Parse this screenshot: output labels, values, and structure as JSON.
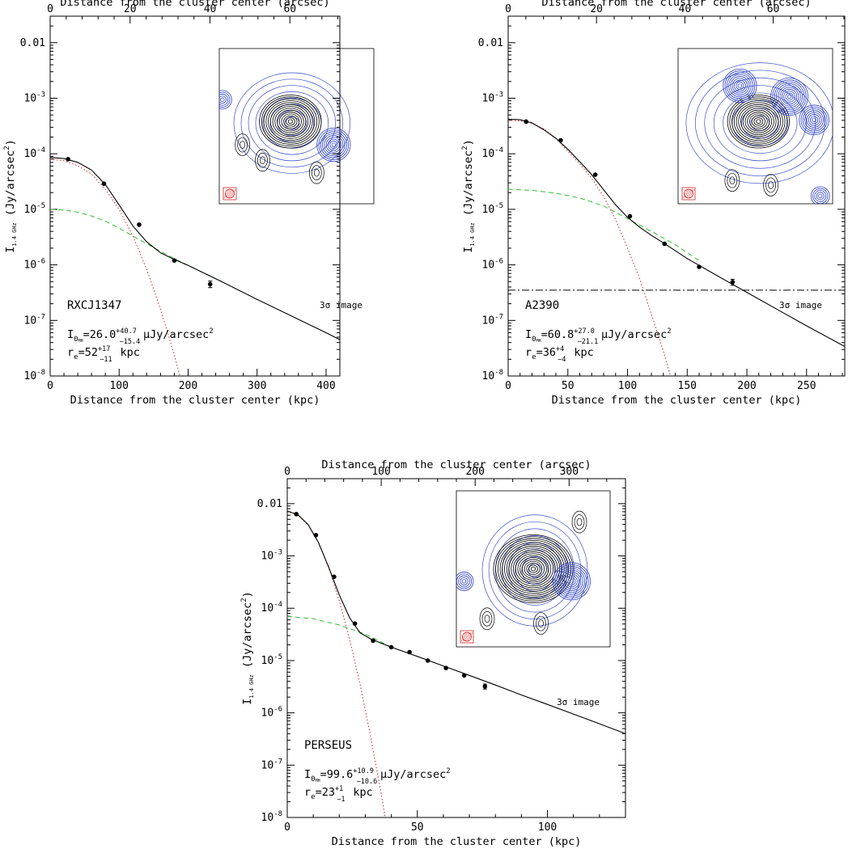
{
  "chart_data": [
    {
      "type": "line",
      "x_scale": "linear",
      "y_scale": "log",
      "xlabel": "Distance from the cluster center (kpc)",
      "ylabel": "I",
      "ylabel_sub": "1.4 GHz",
      "ylabel_unit": "(Jy/arcsec",
      "ylabel_unit_sup": "2",
      "ylabel_unit_end": ")",
      "top_xlabel": "Distance from the cluster center (arcsec)",
      "xlim": [
        0,
        420
      ],
      "ylim": [
        1e-08,
        0.03
      ],
      "top_xlim": [
        0,
        72.5
      ],
      "x_ticks": [
        0,
        100,
        200,
        300,
        400
      ],
      "x_ticklabels": [
        "0",
        "100",
        "200",
        "300",
        "400"
      ],
      "top_ticks": [
        0,
        20,
        40,
        60
      ],
      "top_ticklabels": [
        "0",
        "20",
        "40",
        "60"
      ],
      "y_ticks": [
        1e-08,
        1e-07,
        1e-06,
        1e-05,
        0.0001,
        0.001,
        0.01
      ],
      "y_ticklabels": [
        [
          "10",
          "-8"
        ],
        [
          "10",
          "-7"
        ],
        [
          "10",
          "-6"
        ],
        [
          "10",
          "-5"
        ],
        [
          "10",
          "-4"
        ],
        [
          "10",
          "-3"
        ],
        [
          "0.01",
          ""
        ]
      ],
      "cluster_name": "RXCJ1347",
      "sigma_label": "3σ image",
      "sigma_line": null,
      "annotation_line1": {
        "sym": "I",
        "sub": "0",
        "sub2": "MH",
        "eq": "=26.0",
        "sup": "+40.7",
        "lo": "−15.4",
        "unit": " μJy/arcsec",
        "unitsup": "2"
      },
      "annotation_line2": {
        "sym": "r",
        "sub": "e",
        "eq": "=52",
        "sup": "+17",
        "lo": "−11",
        "unit": " kpc"
      },
      "data_points": {
        "x": [
          26,
          78,
          129,
          180,
          232
        ],
        "y": [
          8e-05,
          2.9e-05,
          5.3e-06,
          1.2e-06,
          4.5e-07
        ],
        "yerr": [
          0,
          0,
          0,
          0,
          6e-08
        ]
      },
      "models": {
        "total": {
          "color": "#000000",
          "x": [
            0,
            20,
            40,
            60,
            80,
            100,
            120,
            140,
            160,
            180,
            200,
            250,
            300,
            350,
            400,
            420
          ],
          "y": [
            8.6e-05,
            8.2e-05,
            7e-05,
            5.1e-05,
            2.8e-05,
            1.2e-05,
            5e-06,
            2.6e-06,
            1.65e-06,
            1.25e-06,
            9.8e-07,
            4.9e-07,
            2.4e-07,
            1.2e-07,
            6e-08,
            4.5e-08
          ]
        },
        "core": {
          "color": "#d62020",
          "x": [
            0,
            20,
            40,
            60,
            80,
            100,
            120,
            140,
            160,
            180,
            200,
            210
          ],
          "y": [
            8e-05,
            7.5e-05,
            6.1e-05,
            4.3e-05,
            2.3e-05,
            1e-05,
            3.3e-06,
            8.3e-07,
            1.6e-07,
            2.4e-08,
            2.8e-09,
            1e-09
          ]
        },
        "halo": {
          "color": "#2fbf2f",
          "x": [
            0,
            20,
            40,
            60,
            80,
            100,
            120,
            140,
            160,
            180,
            200,
            250
          ],
          "y": [
            1e-05,
            9.7e-06,
            8.9e-06,
            7.6e-06,
            6.1e-06,
            4.6e-06,
            3.3e-06,
            2.4e-06,
            1.75e-06,
            1.3e-06,
            9.8e-07,
            4.9e-07
          ]
        }
      }
    },
    {
      "type": "line",
      "x_scale": "linear",
      "y_scale": "log",
      "xlabel": "Distance from the cluster center (kpc)",
      "ylabel": "I",
      "ylabel_sub": "1.4 GHz",
      "ylabel_unit": "(Jy/arcsec",
      "ylabel_unit_sup": "2",
      "ylabel_unit_end": ")",
      "top_xlabel": "Distance from the cluster center (arcsec)",
      "xlim": [
        0,
        282
      ],
      "ylim": [
        1e-08,
        0.03
      ],
      "top_xlim": [
        0,
        76.2
      ],
      "x_ticks": [
        0,
        50,
        100,
        150,
        200,
        250
      ],
      "x_ticklabels": [
        "0",
        "50",
        "100",
        "150",
        "200",
        "250"
      ],
      "top_ticks": [
        0,
        20,
        40,
        60
      ],
      "top_ticklabels": [
        "0",
        "20",
        "40",
        "60"
      ],
      "y_ticks": [
        1e-08,
        1e-07,
        1e-06,
        1e-05,
        0.0001,
        0.001,
        0.01
      ],
      "y_ticklabels": [
        [
          "10",
          "-8"
        ],
        [
          "10",
          "-7"
        ],
        [
          "10",
          "-6"
        ],
        [
          "10",
          "-5"
        ],
        [
          "10",
          "-4"
        ],
        [
          "10",
          "-3"
        ],
        [
          "0.01",
          ""
        ]
      ],
      "cluster_name": "A2390",
      "sigma_label": "3σ image",
      "sigma_line": 3.5e-07,
      "annotation_line1": {
        "sym": "I",
        "sub": "0",
        "sub2": "MH",
        "eq": "=60.8",
        "sup": "+27.0",
        "lo": "−21.1",
        "unit": " μJy/arcsec",
        "unitsup": "2"
      },
      "annotation_line2": {
        "sym": "r",
        "sub": "e",
        "eq": "=36",
        "sup": "+4",
        "lo": "−4",
        "unit": " kpc"
      },
      "data_points": {
        "x": [
          15,
          44,
          73,
          102,
          131,
          160,
          188
        ],
        "y": [
          0.00038,
          0.000175,
          4.2e-05,
          7.5e-06,
          2.4e-06,
          9.2e-07,
          4.9e-07
        ],
        "yerr": [
          0,
          0,
          0,
          0,
          0,
          0,
          6e-08
        ]
      },
      "models": {
        "total": {
          "color": "#000000",
          "x": [
            0,
            10,
            20,
            30,
            40,
            50,
            60,
            70,
            80,
            90,
            100,
            110,
            120,
            130,
            150,
            175,
            200,
            225,
            250,
            282
          ],
          "y": [
            0.00042,
            0.00041,
            0.00036,
            0.00027,
            0.00019,
            0.00012,
            7.2e-05,
            4.2e-05,
            2.25e-05,
            1.2e-05,
            7.2e-06,
            4.8e-06,
            3.4e-06,
            2.5e-06,
            1.3e-06,
            6.4e-07,
            3.2e-07,
            1.6e-07,
            8e-08,
            3.4e-08
          ]
        },
        "core": {
          "color": "#d62020",
          "x": [
            0,
            10,
            20,
            30,
            40,
            50,
            60,
            70,
            80,
            90,
            100,
            110,
            120,
            130,
            140,
            148
          ],
          "y": [
            0.0004,
            0.00039,
            0.00035,
            0.00028,
            0.00019,
            0.00011,
            6.6e-05,
            3.6e-05,
            1.7e-05,
            6.5e-06,
            2e-06,
            5.8e-07,
            1.3e-07,
            2.8e-08,
            5e-09,
            1e-09
          ]
        },
        "halo": {
          "color": "#2fbf2f",
          "x": [
            0,
            20,
            40,
            60,
            80,
            100,
            120,
            140,
            160
          ],
          "y": [
            2.3e-05,
            2.2e-05,
            1.95e-05,
            1.6e-05,
            1.15e-05,
            6.8e-06,
            4e-06,
            2.3e-06,
            1.2e-06
          ]
        }
      }
    },
    {
      "type": "line",
      "x_scale": "linear",
      "y_scale": "log",
      "xlabel": "Distance from the cluster center (kpc)",
      "ylabel": "I",
      "ylabel_sub": "1.4 GHz",
      "ylabel_unit": "(Jy/arcsec",
      "ylabel_unit_sup": "2",
      "ylabel_unit_end": ")",
      "top_xlabel": "Distance from the cluster center (arcsec)",
      "xlim": [
        0,
        130
      ],
      "ylim": [
        1e-08,
        0.03
      ],
      "top_xlim": [
        0,
        360
      ],
      "x_ticks": [
        0,
        50,
        100
      ],
      "x_ticklabels": [
        "0",
        "50",
        "100"
      ],
      "top_ticks": [
        0,
        100,
        200,
        300
      ],
      "top_ticklabels": [
        "0",
        "100",
        "200",
        "300"
      ],
      "y_ticks": [
        1e-08,
        1e-07,
        1e-06,
        1e-05,
        0.0001,
        0.001,
        0.01
      ],
      "y_ticklabels": [
        [
          "10",
          "-8"
        ],
        [
          "10",
          "-7"
        ],
        [
          "10",
          "-6"
        ],
        [
          "10",
          "-5"
        ],
        [
          "10",
          "-4"
        ],
        [
          "10",
          "-3"
        ],
        [
          "0.01",
          ""
        ]
      ],
      "cluster_name": "PERSEUS",
      "sigma_label": "3σ image",
      "sigma_line": null,
      "annotation_line1": {
        "sym": "I",
        "sub": "0",
        "sub2": "MH",
        "eq": "=99.6",
        "sup": "+10.9",
        "lo": "−10.6",
        "unit": " μJy/arcsec",
        "unitsup": "2"
      },
      "annotation_line2": {
        "sym": "r",
        "sub": "e",
        "eq": "=23",
        "sup": "+1",
        "lo": "−1",
        "unit": " kpc"
      },
      "data_points": {
        "x": [
          3.5,
          11,
          18,
          26,
          33,
          40,
          47,
          54,
          61,
          68,
          76
        ],
        "y": [
          0.0063,
          0.0025,
          0.0004,
          5.1e-05,
          2.4e-05,
          1.8e-05,
          1.45e-05,
          1e-05,
          7.2e-06,
          5.2e-06,
          3.2e-06
        ],
        "yerr": [
          0,
          0,
          0,
          0,
          0,
          0,
          0,
          0,
          0,
          0,
          3.5e-07
        ]
      },
      "models": {
        "total": {
          "color": "#000000",
          "x": [
            0,
            4,
            8,
            12,
            16,
            20,
            24,
            28,
            32,
            36,
            40,
            50,
            60,
            70,
            80,
            90,
            100,
            110,
            120,
            130
          ],
          "y": [
            0.0072,
            0.0062,
            0.004,
            0.0018,
            0.0006,
            0.00018,
            6.5e-05,
            3.4e-05,
            2.6e-05,
            2.15e-05,
            1.8e-05,
            1.2e-05,
            7.9e-06,
            5.2e-06,
            3.4e-06,
            2.2e-06,
            1.45e-06,
            9.5e-07,
            6.2e-07,
            4e-07
          ]
        },
        "core": {
          "color": "#d62020",
          "x": [
            0,
            4,
            8,
            12,
            16,
            20,
            24,
            28,
            32,
            36,
            40
          ],
          "y": [
            0.0071,
            0.0061,
            0.0039,
            0.0018,
            0.00058,
            0.00014,
            2.5e-05,
            3.5e-06,
            3.6e-07,
            3e-08,
            2e-09
          ]
        },
        "halo": {
          "color": "#2fbf2f",
          "x": [
            0,
            10,
            20,
            30,
            40
          ],
          "y": [
            7e-05,
            6.3e-05,
            4.8e-05,
            3.2e-05,
            1.8e-05
          ]
        }
      }
    }
  ]
}
